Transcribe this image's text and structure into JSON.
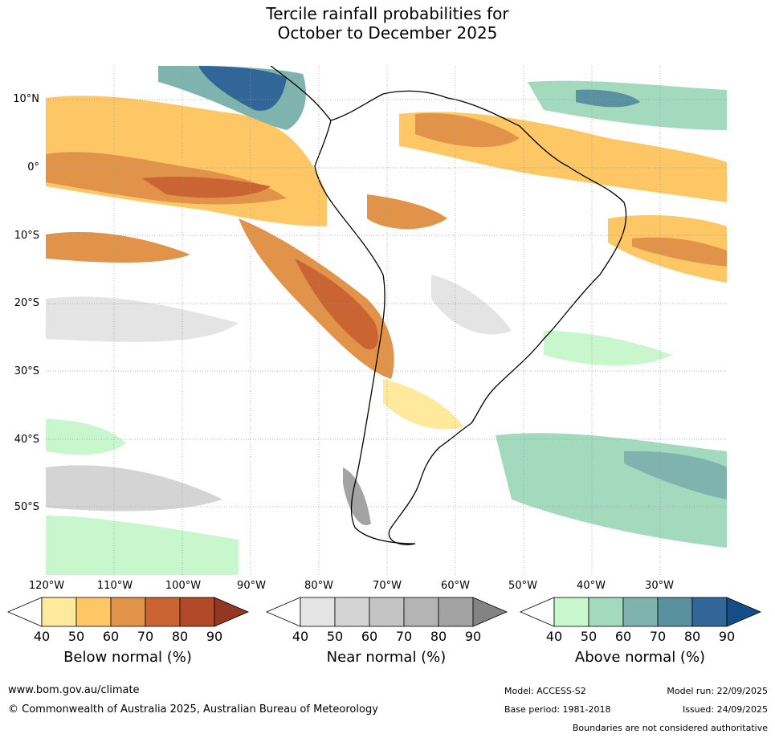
{
  "title": {
    "line1": "Tercile rainfall probabilities for",
    "line2": "October to December 2025"
  },
  "map": {
    "lat_labels": [
      "10°N",
      "0°",
      "10°S",
      "20°S",
      "30°S",
      "40°S",
      "50°S"
    ],
    "lon_labels": [
      "120°W",
      "110°W",
      "100°W",
      "90°W",
      "80°W",
      "70°W",
      "60°W",
      "50°W",
      "40°W",
      "30°W"
    ]
  },
  "colorbars": [
    {
      "label": "Below normal (%)",
      "ticks": [
        "40",
        "50",
        "60",
        "70",
        "80",
        "90"
      ],
      "colors": [
        "#ffffff",
        "#fee99d",
        "#fdc765",
        "#e2934a",
        "#ca6533",
        "#b24a27",
        "#943623"
      ]
    },
    {
      "label": "Near normal (%)",
      "ticks": [
        "40",
        "50",
        "60",
        "70",
        "80",
        "90"
      ],
      "colors": [
        "#ffffff",
        "#e4e4e4",
        "#d4d4d4",
        "#c4c4c4",
        "#b4b4b4",
        "#a3a3a3",
        "#838383"
      ]
    },
    {
      "label": "Above normal (%)",
      "ticks": [
        "40",
        "50",
        "60",
        "70",
        "80",
        "90"
      ],
      "colors": [
        "#ffffff",
        "#c9f7cd",
        "#a3d9bd",
        "#7eb4ad",
        "#5a91a0",
        "#336698",
        "#154e86"
      ]
    }
  ],
  "footer": {
    "url": "www.bom.gov.au/climate",
    "copyright": "© Commonwealth of Australia 2025, Australian Bureau of Meteorology",
    "model": "Model: ACCESS-S2",
    "model_run": "Model run: 22/09/2025",
    "base_period": "Base period: 1981-2018",
    "issued": "Issued: 24/09/2025",
    "disclaimer": "Boundaries are not considered authoritative"
  }
}
